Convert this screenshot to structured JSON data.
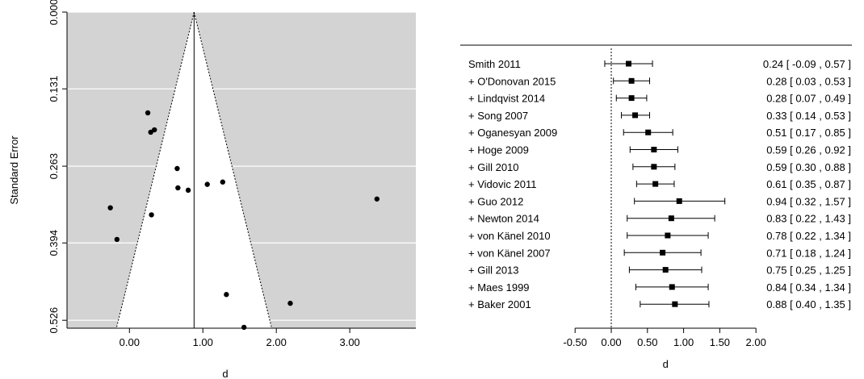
{
  "chart_data": [
    {
      "type": "scatter",
      "subtype": "funnel-plot",
      "xlabel": "d",
      "ylabel": "Standard Error",
      "xlim": [
        -0.85,
        3.9
      ],
      "ylim": [
        0.5395,
        0.0
      ],
      "y_reversed": true,
      "background_color": "#d3d3d3",
      "funnel_color": "#ffffff",
      "summary_estimate": 0.88,
      "x_ticks": [
        0.0,
        1.0,
        2.0,
        3.0
      ],
      "x_tick_labels": [
        "0.00",
        "1.00",
        "2.00",
        "3.00"
      ],
      "y_ticks": [
        0.0,
        0.131,
        0.263,
        0.394,
        0.526
      ],
      "y_tick_labels": [
        "0.000",
        "0.131",
        "0.263",
        "0.394",
        "0.526"
      ],
      "points": [
        {
          "x": 0.25,
          "y": 0.172
        },
        {
          "x": 0.29,
          "y": 0.205
        },
        {
          "x": 0.34,
          "y": 0.201
        },
        {
          "x": 0.65,
          "y": 0.267
        },
        {
          "x": 0.66,
          "y": 0.3
        },
        {
          "x": 0.8,
          "y": 0.304
        },
        {
          "x": 1.06,
          "y": 0.294
        },
        {
          "x": 1.27,
          "y": 0.29
        },
        {
          "x": 0.3,
          "y": 0.346
        },
        {
          "x": -0.26,
          "y": 0.334
        },
        {
          "x": -0.17,
          "y": 0.388
        },
        {
          "x": 3.37,
          "y": 0.319
        },
        {
          "x": 1.32,
          "y": 0.482
        },
        {
          "x": 2.19,
          "y": 0.497
        },
        {
          "x": 1.56,
          "y": 0.538
        }
      ]
    },
    {
      "type": "forest",
      "subtype": "cumulative-meta-analysis",
      "xlabel": "d",
      "xlim": [
        -0.5,
        2.0
      ],
      "x_ticks": [
        -0.5,
        0.0,
        0.5,
        1.0,
        1.5,
        2.0
      ],
      "x_tick_labels": [
        "-0.50",
        "0.00",
        "0.50",
        "1.00",
        "1.50",
        "2.00"
      ],
      "reference_line": 0.0,
      "studies": [
        {
          "label": "Smith 2011",
          "est": 0.24,
          "lo": -0.09,
          "hi": 0.57,
          "text": "0.24 [ -0.09 , 0.57 ]"
        },
        {
          "label": "+ O'Donovan 2015",
          "est": 0.28,
          "lo": 0.03,
          "hi": 0.53,
          "text": "0.28 [ 0.03 , 0.53 ]"
        },
        {
          "label": "+ Lindqvist 2014",
          "est": 0.28,
          "lo": 0.07,
          "hi": 0.49,
          "text": "0.28 [ 0.07 , 0.49 ]"
        },
        {
          "label": "+ Song 2007",
          "est": 0.33,
          "lo": 0.14,
          "hi": 0.53,
          "text": "0.33 [ 0.14 , 0.53 ]"
        },
        {
          "label": "+ Oganesyan 2009",
          "est": 0.51,
          "lo": 0.17,
          "hi": 0.85,
          "text": "0.51 [ 0.17 , 0.85 ]"
        },
        {
          "label": "+ Hoge 2009",
          "est": 0.59,
          "lo": 0.26,
          "hi": 0.92,
          "text": "0.59 [ 0.26 , 0.92 ]"
        },
        {
          "label": "+ Gill 2010",
          "est": 0.59,
          "lo": 0.3,
          "hi": 0.88,
          "text": "0.59 [ 0.30 , 0.88 ]"
        },
        {
          "label": "+ Vidovic 2011",
          "est": 0.61,
          "lo": 0.35,
          "hi": 0.87,
          "text": "0.61 [ 0.35 , 0.87 ]"
        },
        {
          "label": "+ Guo 2012",
          "est": 0.94,
          "lo": 0.32,
          "hi": 1.57,
          "text": "0.94 [ 0.32 , 1.57 ]"
        },
        {
          "label": "+ Newton 2014",
          "est": 0.83,
          "lo": 0.22,
          "hi": 1.43,
          "text": "0.83 [ 0.22 , 1.43 ]"
        },
        {
          "label": "+ von Känel 2010",
          "est": 0.78,
          "lo": 0.22,
          "hi": 1.34,
          "text": "0.78 [ 0.22 , 1.34 ]"
        },
        {
          "label": "+ von Känel 2007",
          "est": 0.71,
          "lo": 0.18,
          "hi": 1.24,
          "text": "0.71 [ 0.18 , 1.24 ]"
        },
        {
          "label": "+ Gill 2013",
          "est": 0.75,
          "lo": 0.25,
          "hi": 1.25,
          "text": "0.75 [ 0.25 , 1.25 ]"
        },
        {
          "label": "+ Maes 1999",
          "est": 0.84,
          "lo": 0.34,
          "hi": 1.34,
          "text": "0.84 [ 0.34 , 1.34 ]"
        },
        {
          "label": "+ Baker 2001",
          "est": 0.88,
          "lo": 0.4,
          "hi": 1.35,
          "text": "0.88 [ 0.40 , 1.35 ]"
        }
      ]
    }
  ]
}
